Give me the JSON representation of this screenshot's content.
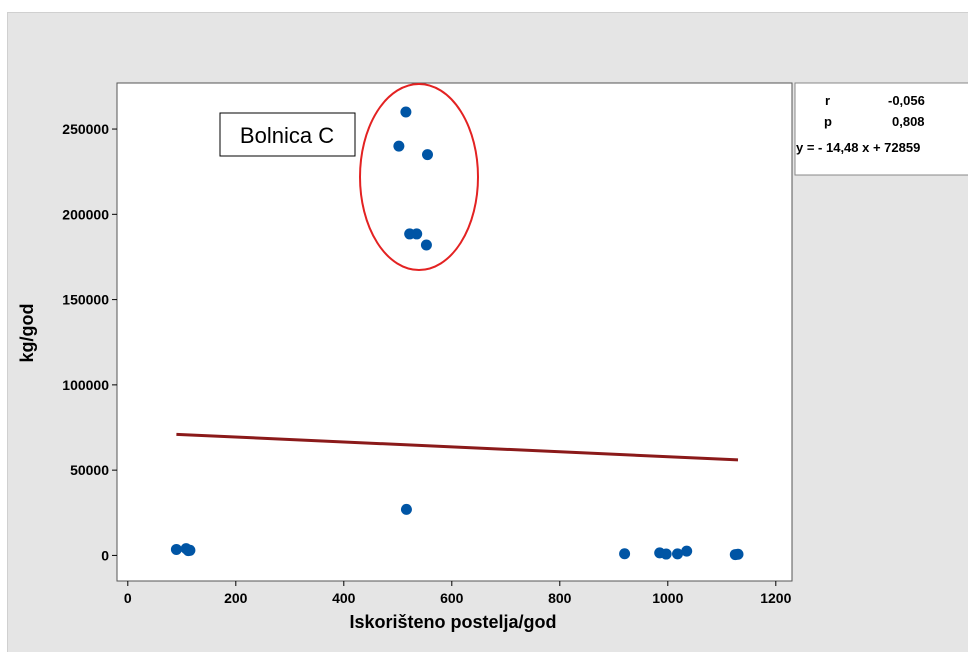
{
  "chart_data": {
    "type": "scatter",
    "xlabel": "Iskorišteno postelja/god",
    "ylabel": "kg/god",
    "xlim": [
      -20,
      1230
    ],
    "ylim": [
      -15000,
      277000
    ],
    "xticks": [
      0,
      200,
      400,
      600,
      800,
      1000,
      1200
    ],
    "yticks": [
      0,
      50000,
      100000,
      150000,
      200000,
      250000
    ],
    "grid": false,
    "marker_color": "#0055a5",
    "line_color": "#8b1a1a",
    "points": [
      {
        "x": 90,
        "y": 3500
      },
      {
        "x": 108,
        "y": 4000
      },
      {
        "x": 112,
        "y": 2800
      },
      {
        "x": 115,
        "y": 3000
      },
      {
        "x": 515,
        "y": 260000
      },
      {
        "x": 502,
        "y": 240000
      },
      {
        "x": 555,
        "y": 235000
      },
      {
        "x": 522,
        "y": 188500
      },
      {
        "x": 535,
        "y": 188500
      },
      {
        "x": 553,
        "y": 182000
      },
      {
        "x": 516,
        "y": 27000
      },
      {
        "x": 920,
        "y": 1000
      },
      {
        "x": 985,
        "y": 1500
      },
      {
        "x": 997,
        "y": 800
      },
      {
        "x": 1018,
        "y": 900
      },
      {
        "x": 1035,
        "y": 2500
      },
      {
        "x": 1125,
        "y": 500
      },
      {
        "x": 1130,
        "y": 700
      }
    ],
    "fit_line": {
      "x": [
        90,
        1130
      ],
      "y": [
        71000,
        56000
      ]
    },
    "stats": {
      "r_label": "r",
      "r_value": "-0,056",
      "p_label": "p",
      "p_value": "0,808",
      "equation": "y = - 14,48 x + 72859"
    },
    "annotation": {
      "text": "Bolnica C",
      "ellipse_color": "#e32222"
    }
  }
}
